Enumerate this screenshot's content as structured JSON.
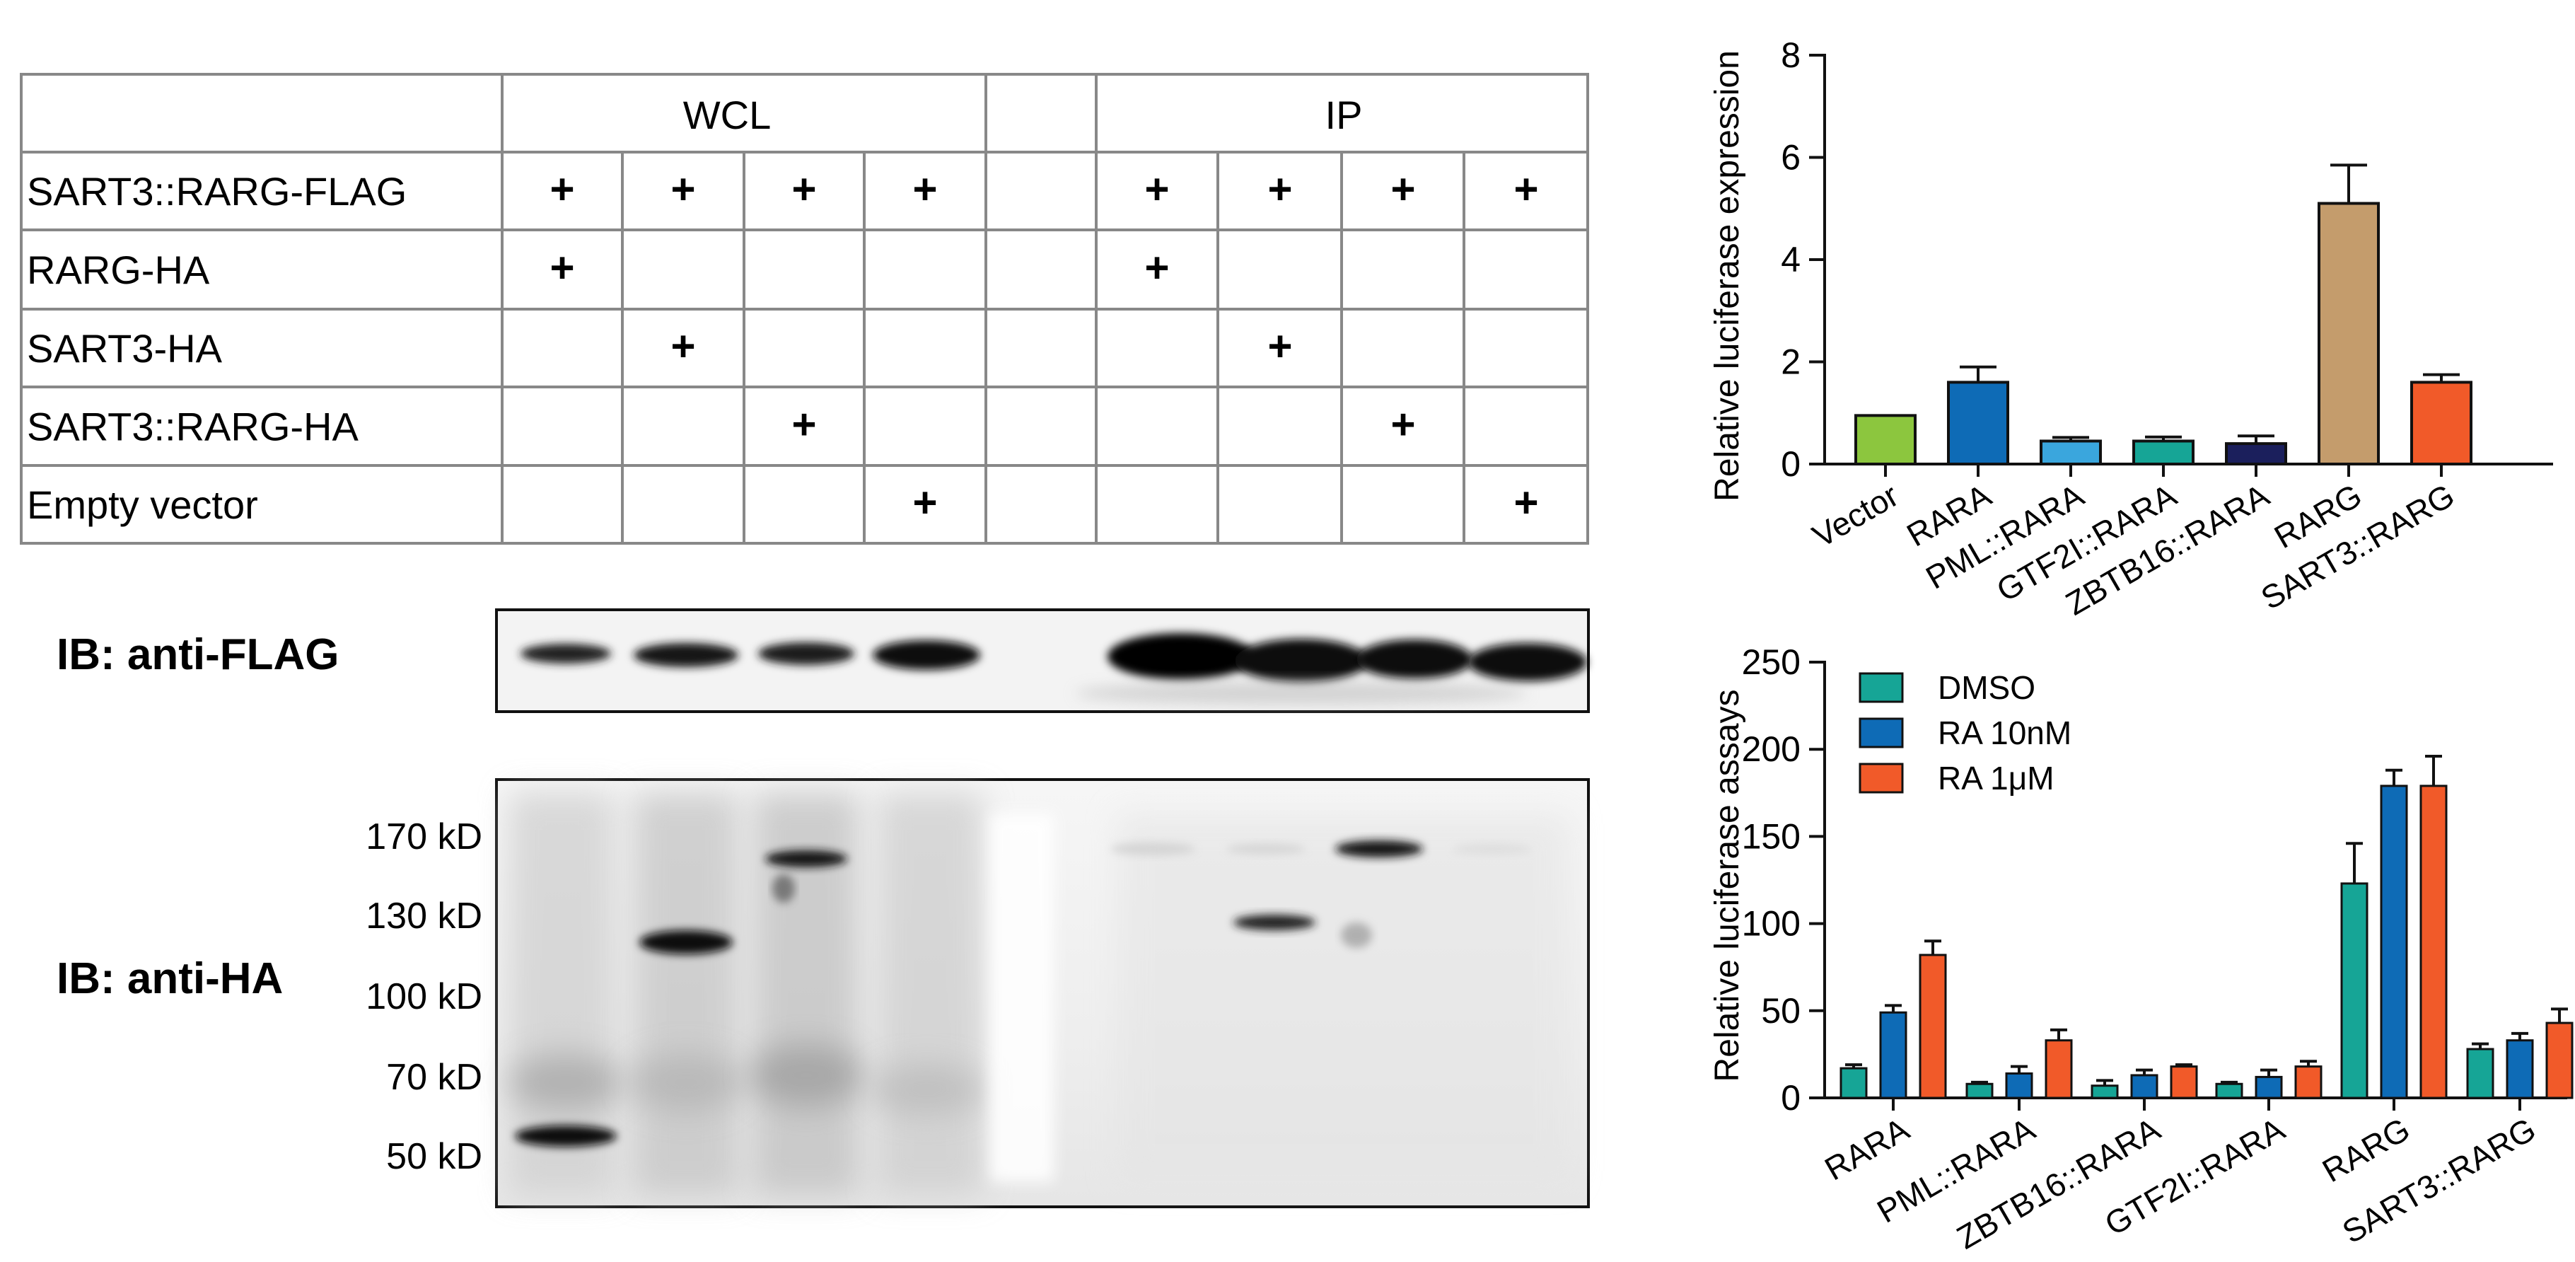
{
  "table": {
    "groups": [
      "WCL",
      "IP"
    ],
    "rows": [
      {
        "label": "SART3::RARG-FLAG",
        "wcl": [
          "+",
          "+",
          "+",
          "+"
        ],
        "ip": [
          "+",
          "+",
          "+",
          "+"
        ]
      },
      {
        "label": "RARG-HA",
        "wcl": [
          "+",
          "",
          "",
          ""
        ],
        "ip": [
          "+",
          "",
          "",
          ""
        ]
      },
      {
        "label": "SART3-HA",
        "wcl": [
          "",
          "+",
          "",
          ""
        ],
        "ip": [
          "",
          "+",
          "",
          ""
        ]
      },
      {
        "label": "SART3::RARG-HA",
        "wcl": [
          "",
          "",
          "+",
          ""
        ],
        "ip": [
          "",
          "",
          "+",
          ""
        ]
      },
      {
        "label": "Empty vector",
        "wcl": [
          "",
          "",
          "",
          "+"
        ],
        "ip": [
          "",
          "",
          "",
          "+"
        ]
      }
    ]
  },
  "blots": {
    "flag_label": "IB: anti-FLAG",
    "ha_label": "IB: anti-HA",
    "markers": [
      "170 kD",
      "130 kD",
      "100 kD",
      "70 kD",
      "50 kD"
    ]
  },
  "chart_data": [
    {
      "type": "bar",
      "ylabel": "Relative luciferase expression",
      "ylim": [
        0,
        8
      ],
      "yticks": [
        "0",
        "2",
        "4",
        "6",
        "8"
      ],
      "categories": [
        "Vector",
        "RARA",
        "PML::RARA",
        "GTF2I::RARA",
        "ZBTB16::RARA",
        "RARG",
        "SART3::RARG"
      ],
      "values": [
        0.95,
        1.6,
        0.45,
        0.45,
        0.4,
        5.1,
        1.6
      ],
      "errors": [
        0.0,
        0.3,
        0.07,
        0.08,
        0.15,
        0.75,
        0.15
      ],
      "colors": [
        "#8cc63e",
        "#0e6bb6",
        "#3aa6dd",
        "#16a596",
        "#1b1f5c",
        "#c49c6c",
        "#f15a29"
      ]
    },
    {
      "type": "bar",
      "ylabel": "Relative luciferase assays",
      "ylim": [
        0,
        250
      ],
      "yticks": [
        "0",
        "50",
        "100",
        "150",
        "200",
        "250"
      ],
      "categories": [
        "RARA",
        "PML::RARA",
        "ZBTB16::RARA",
        "GTF2I::RARA",
        "RARG",
        "SART3::RARG"
      ],
      "legend_position": "top-left",
      "series": [
        {
          "name": "DMSO",
          "color": "#16a596",
          "values": [
            17,
            8,
            7,
            8,
            123,
            28
          ],
          "errors": [
            2,
            1,
            3,
            1,
            23,
            3
          ]
        },
        {
          "name": "RA 10nM",
          "color": "#0e6bb6",
          "values": [
            49,
            14,
            13,
            12,
            179,
            33
          ],
          "errors": [
            4,
            4,
            3,
            4,
            9,
            4
          ]
        },
        {
          "name": "RA 1μM",
          "color": "#f15a29",
          "values": [
            82,
            33,
            18,
            18,
            179,
            43
          ],
          "errors": [
            8,
            6,
            1,
            3,
            17,
            8
          ]
        }
      ]
    }
  ]
}
